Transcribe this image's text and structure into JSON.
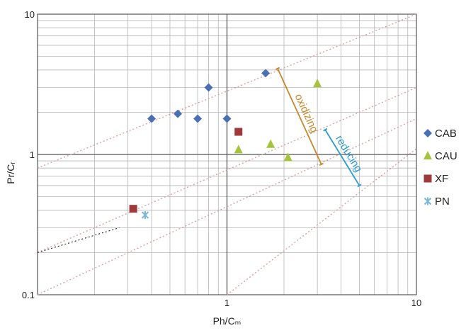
{
  "chart_data": {
    "type": "scatter",
    "x_scale": "log",
    "y_scale": "log",
    "xlim": [
      0.1,
      10
    ],
    "ylim": [
      0.1,
      10
    ],
    "xlabel": "Ph/Cₘ",
    "ylabel": "Pr/Cᵣ",
    "xticks": [
      "1",
      "10"
    ],
    "yticks": [
      "0.1",
      "1",
      "10"
    ],
    "grid": true,
    "legend_position": "right",
    "series": [
      {
        "name": "CAB",
        "marker": "diamond",
        "color": "#4a6fb5",
        "points": [
          [
            0.4,
            1.8
          ],
          [
            0.55,
            1.95
          ],
          [
            0.7,
            1.8
          ],
          [
            0.8,
            3.0
          ],
          [
            1.0,
            1.8
          ],
          [
            1.6,
            3.8
          ]
        ]
      },
      {
        "name": "CAU",
        "marker": "triangle",
        "color": "#a6c43a",
        "points": [
          [
            1.15,
            1.08
          ],
          [
            1.7,
            1.18
          ],
          [
            2.1,
            0.95
          ],
          [
            3.0,
            3.2
          ]
        ]
      },
      {
        "name": "XF",
        "marker": "square",
        "color": "#a03a3a",
        "points": [
          [
            1.15,
            1.45
          ],
          [
            0.32,
            0.41
          ]
        ]
      },
      {
        "name": "PN",
        "marker": "asterisk",
        "color": "#7ab8d8",
        "points": [
          [
            0.37,
            0.37
          ]
        ]
      }
    ],
    "reference_lines": [
      {
        "name": "line-upper",
        "color": "#d9a0a0",
        "style": "dotted",
        "points": [
          [
            0.1,
            0.8
          ],
          [
            10,
            10
          ]
        ]
      },
      {
        "name": "line-mid",
        "color": "#d9a0a0",
        "style": "dotted",
        "points": [
          [
            0.1,
            0.2
          ],
          [
            10,
            3.0
          ]
        ]
      },
      {
        "name": "line-low",
        "color": "#d9a0a0",
        "style": "dotted",
        "points": [
          [
            0.1,
            0.1
          ],
          [
            10,
            1.8
          ]
        ]
      },
      {
        "name": "line-diag",
        "color": "#d9a0a0",
        "style": "dotted",
        "points": [
          [
            1.0,
            0.1
          ],
          [
            10,
            1.1
          ]
        ]
      },
      {
        "name": "line-black",
        "color": "#000000",
        "style": "dotted",
        "points": [
          [
            0.1,
            0.2
          ],
          [
            0.27,
            0.3
          ]
        ]
      }
    ],
    "annotations": [
      {
        "text": "oxidizing",
        "color": "#c8872a",
        "from": [
          1.85,
          4.1
        ],
        "to": [
          3.15,
          0.85
        ]
      },
      {
        "text": "reducing",
        "color": "#2a9ad0",
        "from": [
          3.3,
          1.5
        ],
        "to": [
          5.0,
          0.6
        ]
      }
    ]
  }
}
